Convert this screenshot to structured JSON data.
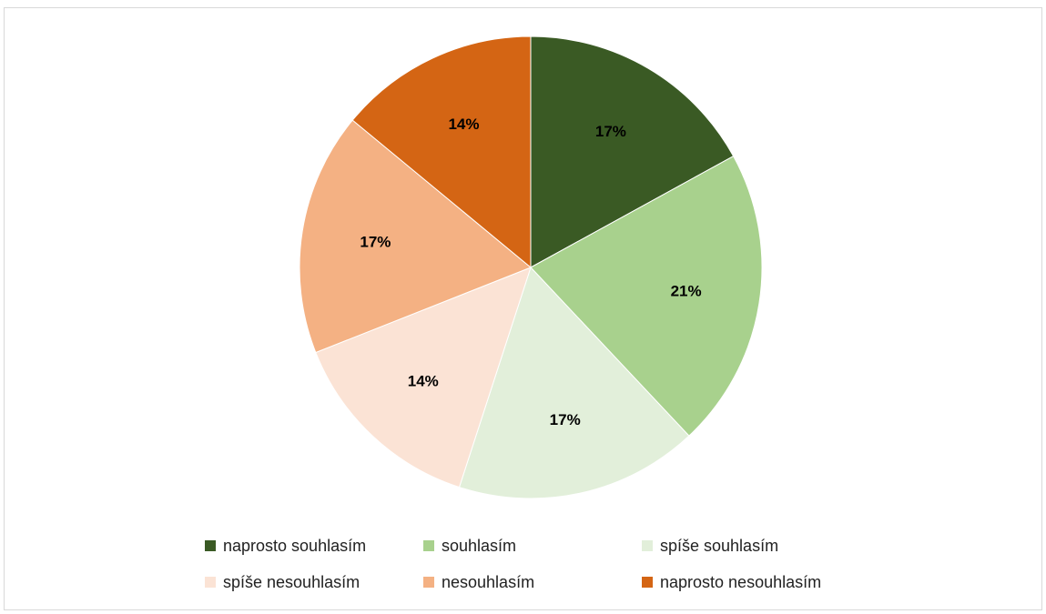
{
  "chart_data": {
    "type": "pie",
    "title": "",
    "legend_position": "bottom",
    "slices": [
      {
        "label": "naprosto souhlasím",
        "value": 17,
        "display": "17%",
        "color": "#3a5a24"
      },
      {
        "label": "souhlasím",
        "value": 21,
        "display": "21%",
        "color": "#a8d18d"
      },
      {
        "label": "spíše souhlasím",
        "value": 17,
        "display": "17%",
        "color": "#e2efda"
      },
      {
        "label": "spíše nesouhlasím",
        "value": 14,
        "display": "14%",
        "color": "#fbe3d5"
      },
      {
        "label": "nesouhlasím",
        "value": 17,
        "display": "17%",
        "color": "#f4b183"
      },
      {
        "label": "naprosto nesouhlasím",
        "value": 14,
        "display": "14%",
        "color": "#d46514"
      }
    ]
  }
}
